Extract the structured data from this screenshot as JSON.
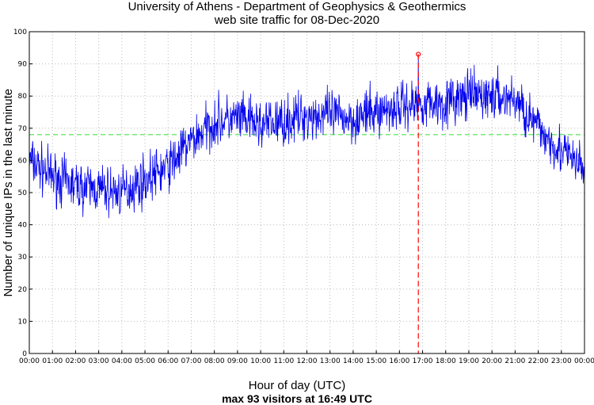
{
  "chart_data": {
    "type": "line",
    "title": "University of Athens - Department of Geophysics & Geothermics",
    "subtitle": "web site traffic for 08-Dec-2020",
    "xlabel": "Hour of day (UTC)",
    "ylabel": "Number of unique IPs in the last minute",
    "footer": "max 93 visitors at 16:49 UTC",
    "x_tick_labels": [
      "00:00",
      "01:00",
      "02:00",
      "03:00",
      "04:00",
      "05:00",
      "06:00",
      "07:00",
      "08:00",
      "09:00",
      "10:00",
      "11:00",
      "12:00",
      "13:00",
      "14:00",
      "15:00",
      "16:00",
      "17:00",
      "18:00",
      "19:00",
      "20:00",
      "21:00",
      "22:00",
      "23:00",
      "00:00"
    ],
    "y_ticks": [
      0,
      10,
      20,
      30,
      40,
      50,
      60,
      70,
      80,
      90,
      100
    ],
    "xlim_hours": [
      0,
      24
    ],
    "ylim": [
      0,
      100
    ],
    "grid": true,
    "mean_line": 68,
    "max_point": {
      "time": "16:49",
      "value": 93
    },
    "series_color": "#0000ee",
    "mean_color": "#33dd33",
    "max_color": "#ff0000",
    "hourly_profile": [
      {
        "time": "00:00",
        "value": 60
      },
      {
        "time": "01:00",
        "value": 55
      },
      {
        "time": "02:00",
        "value": 52
      },
      {
        "time": "03:00",
        "value": 51
      },
      {
        "time": "04:00",
        "value": 50
      },
      {
        "time": "05:00",
        "value": 54
      },
      {
        "time": "06:00",
        "value": 58
      },
      {
        "time": "07:00",
        "value": 66
      },
      {
        "time": "08:00",
        "value": 72
      },
      {
        "time": "09:00",
        "value": 73
      },
      {
        "time": "10:00",
        "value": 71
      },
      {
        "time": "11:00",
        "value": 72
      },
      {
        "time": "12:00",
        "value": 74
      },
      {
        "time": "13:00",
        "value": 74
      },
      {
        "time": "14:00",
        "value": 73
      },
      {
        "time": "15:00",
        "value": 75
      },
      {
        "time": "16:00",
        "value": 77
      },
      {
        "time": "17:00",
        "value": 78
      },
      {
        "time": "18:00",
        "value": 78
      },
      {
        "time": "19:00",
        "value": 80
      },
      {
        "time": "20:00",
        "value": 80
      },
      {
        "time": "21:00",
        "value": 79
      },
      {
        "time": "22:00",
        "value": 70
      },
      {
        "time": "23:00",
        "value": 63
      },
      {
        "time": "24:00",
        "value": 57
      }
    ],
    "noise_amplitude": 5
  }
}
